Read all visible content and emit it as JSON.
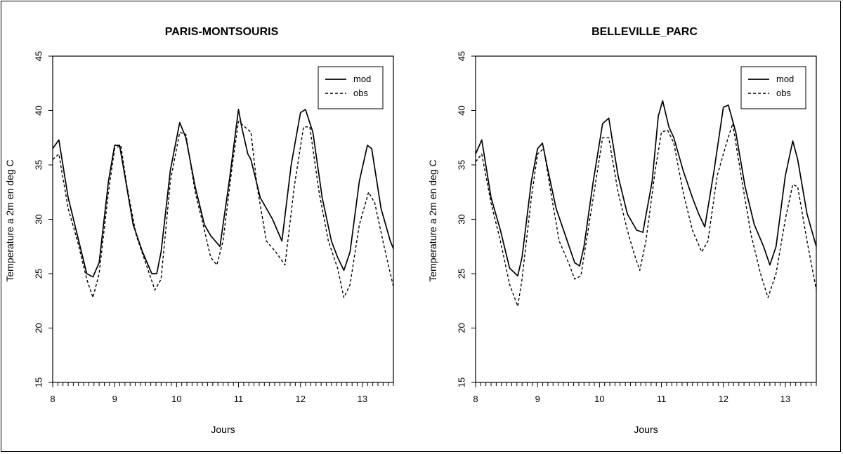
{
  "chart_data": [
    {
      "type": "line",
      "title": "PARIS-MONTSOURIS",
      "xlabel": "Jours",
      "ylabel": "Temperature a 2m en deg C",
      "xlim": [
        8,
        13.5
      ],
      "ylim": [
        15,
        45
      ],
      "xticks": [
        "8",
        "9",
        "10",
        "11",
        "12",
        "13"
      ],
      "yticks": [
        "15",
        "20",
        "25",
        "30",
        "35",
        "40",
        "45"
      ],
      "legend_position": "top-right",
      "series": [
        {
          "name": "mod",
          "style": "solid",
          "x": [
            8.0,
            8.1,
            8.25,
            8.4,
            8.55,
            8.65,
            8.75,
            8.9,
            9.0,
            9.08,
            9.15,
            9.3,
            9.45,
            9.6,
            9.68,
            9.75,
            9.9,
            10.05,
            10.15,
            10.3,
            10.45,
            10.55,
            10.7,
            10.85,
            11.0,
            11.05,
            11.15,
            11.2,
            11.35,
            11.55,
            11.7,
            11.85,
            12.0,
            12.08,
            12.2,
            12.35,
            12.5,
            12.6,
            12.7,
            12.8,
            12.95,
            13.08,
            13.15,
            13.3,
            13.45,
            13.5
          ],
          "values": [
            36.5,
            37.3,
            32.0,
            28.5,
            25.0,
            24.7,
            26.0,
            33.5,
            36.8,
            36.8,
            34.5,
            29.5,
            27.0,
            25.0,
            25.0,
            27.0,
            34.5,
            38.9,
            37.5,
            33.0,
            29.5,
            28.5,
            27.5,
            33.5,
            40.1,
            38.5,
            36.0,
            35.5,
            32.0,
            30.0,
            28.0,
            35.0,
            39.8,
            40.1,
            38.0,
            32.0,
            28.0,
            26.5,
            25.3,
            27.0,
            33.5,
            36.8,
            36.5,
            31.0,
            28.0,
            27.3
          ]
        },
        {
          "name": "obs",
          "style": "dashed",
          "x": [
            8.0,
            8.1,
            8.25,
            8.4,
            8.55,
            8.65,
            8.75,
            8.9,
            9.0,
            9.1,
            9.2,
            9.35,
            9.5,
            9.65,
            9.75,
            9.9,
            10.05,
            10.15,
            10.3,
            10.45,
            10.55,
            10.65,
            10.75,
            10.9,
            11.0,
            11.1,
            11.2,
            11.3,
            11.45,
            11.6,
            11.75,
            11.9,
            12.05,
            12.15,
            12.3,
            12.45,
            12.6,
            12.7,
            12.8,
            12.95,
            13.1,
            13.2,
            13.35,
            13.5
          ],
          "values": [
            35.5,
            36.0,
            31.0,
            28.0,
            24.5,
            22.8,
            25.0,
            32.5,
            36.5,
            36.8,
            33.0,
            28.5,
            26.0,
            23.5,
            24.5,
            33.5,
            38.0,
            37.8,
            32.5,
            29.0,
            26.5,
            25.8,
            28.0,
            35.0,
            39.0,
            38.5,
            38.0,
            33.0,
            28.0,
            27.0,
            25.8,
            33.0,
            38.5,
            38.5,
            32.5,
            28.0,
            25.5,
            22.8,
            24.0,
            29.5,
            32.5,
            31.5,
            27.5,
            23.8
          ]
        }
      ]
    },
    {
      "type": "line",
      "title": "BELLEVILLE_PARC",
      "xlabel": "Jours",
      "ylabel": "Temperature a 2m en deg C",
      "xlim": [
        8,
        13.5
      ],
      "ylim": [
        15,
        45
      ],
      "xticks": [
        "8",
        "9",
        "10",
        "11",
        "12",
        "13"
      ],
      "yticks": [
        "15",
        "20",
        "25",
        "30",
        "35",
        "40",
        "45"
      ],
      "legend_position": "top-right",
      "series": [
        {
          "name": "mod",
          "style": "solid",
          "x": [
            8.0,
            8.1,
            8.25,
            8.4,
            8.55,
            8.68,
            8.75,
            8.9,
            9.0,
            9.08,
            9.15,
            9.3,
            9.45,
            9.6,
            9.68,
            9.75,
            9.9,
            10.05,
            10.15,
            10.3,
            10.45,
            10.6,
            10.7,
            10.85,
            10.95,
            11.02,
            11.12,
            11.2,
            11.35,
            11.5,
            11.6,
            11.7,
            11.85,
            12.0,
            12.08,
            12.2,
            12.35,
            12.5,
            12.65,
            12.75,
            12.85,
            13.0,
            13.12,
            13.2,
            13.35,
            13.5
          ],
          "values": [
            36.0,
            37.3,
            32.0,
            29.0,
            25.5,
            24.8,
            26.5,
            33.5,
            36.5,
            37.0,
            35.0,
            31.0,
            28.5,
            26.0,
            25.7,
            27.5,
            33.5,
            38.8,
            39.3,
            34.0,
            30.5,
            29.0,
            28.8,
            33.5,
            39.5,
            40.9,
            38.5,
            37.5,
            34.5,
            32.0,
            30.5,
            29.3,
            34.5,
            40.3,
            40.5,
            38.0,
            33.0,
            29.5,
            27.5,
            25.8,
            27.5,
            34.0,
            37.2,
            35.5,
            30.5,
            27.5
          ]
        },
        {
          "name": "obs",
          "style": "dashed",
          "x": [
            8.0,
            8.1,
            8.25,
            8.4,
            8.55,
            8.68,
            8.75,
            8.9,
            9.0,
            9.1,
            9.2,
            9.35,
            9.5,
            9.6,
            9.7,
            9.9,
            10.05,
            10.15,
            10.3,
            10.45,
            10.55,
            10.65,
            10.75,
            10.9,
            11.0,
            11.1,
            11.2,
            11.35,
            11.5,
            11.65,
            11.75,
            11.9,
            12.05,
            12.15,
            12.3,
            12.45,
            12.6,
            12.72,
            12.85,
            13.0,
            13.12,
            13.2,
            13.35,
            13.5
          ],
          "values": [
            35.3,
            36.0,
            31.5,
            28.0,
            24.0,
            22.0,
            24.5,
            32.0,
            36.0,
            36.5,
            33.0,
            28.0,
            26.0,
            24.5,
            24.8,
            32.0,
            37.5,
            37.5,
            32.5,
            29.0,
            27.0,
            25.3,
            28.0,
            34.5,
            38.0,
            38.2,
            37.0,
            32.5,
            29.0,
            27.0,
            28.0,
            34.0,
            37.0,
            38.8,
            33.5,
            28.5,
            25.0,
            22.8,
            25.0,
            30.0,
            33.2,
            33.0,
            28.0,
            23.5
          ]
        }
      ]
    }
  ]
}
